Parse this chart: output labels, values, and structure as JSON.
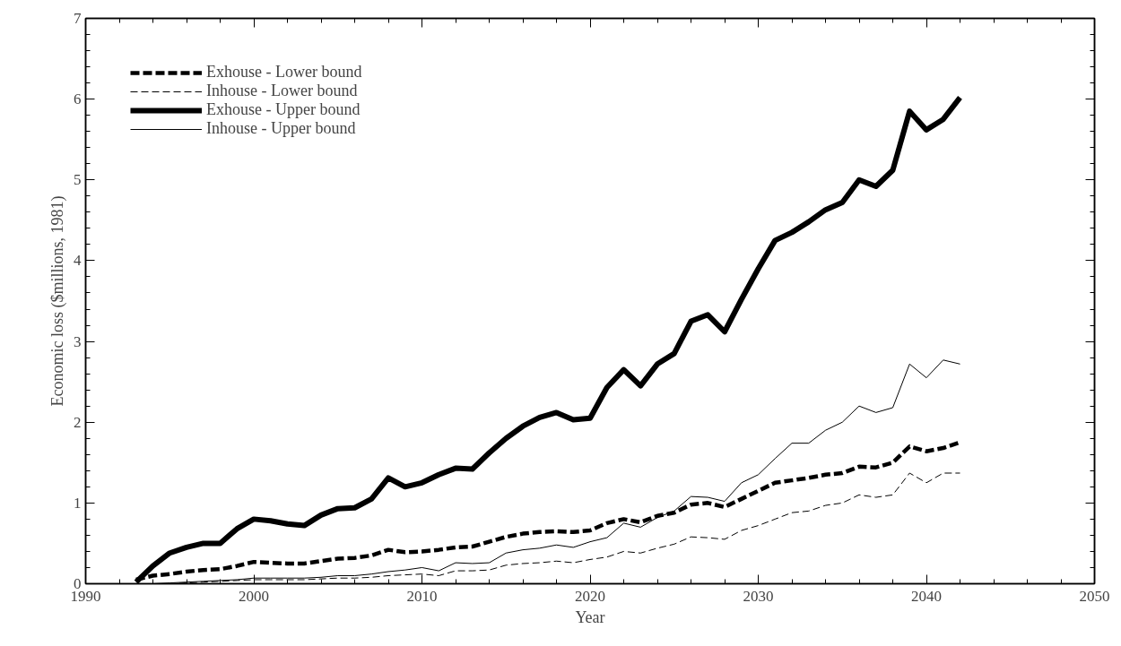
{
  "chart_data": {
    "type": "line",
    "xlabel": "Year",
    "ylabel": "Economic loss ($millions, 1981)",
    "x": [
      1993,
      1994,
      1995,
      1996,
      1997,
      1998,
      1999,
      2000,
      2001,
      2002,
      2003,
      2004,
      2005,
      2006,
      2007,
      2008,
      2009,
      2010,
      2011,
      2012,
      2013,
      2014,
      2015,
      2016,
      2017,
      2018,
      2019,
      2020,
      2021,
      2022,
      2023,
      2024,
      2025,
      2026,
      2027,
      2028,
      2029,
      2030,
      2031,
      2032,
      2033,
      2034,
      2035,
      2036,
      2037,
      2038,
      2039,
      2040,
      2041,
      2042
    ],
    "series": [
      {
        "name": "Exhouse - Lower bound",
        "color": "#000000",
        "line_style": "dashed",
        "values": [
          0.05,
          0.1,
          0.12,
          0.15,
          0.17,
          0.18,
          0.22,
          0.27,
          0.26,
          0.25,
          0.25,
          0.28,
          0.31,
          0.32,
          0.35,
          0.42,
          0.39,
          0.4,
          0.42,
          0.45,
          0.46,
          0.52,
          0.58,
          0.62,
          0.64,
          0.65,
          0.64,
          0.66,
          0.75,
          0.8,
          0.76,
          0.84,
          0.88,
          0.98,
          1.0,
          0.95,
          1.05,
          1.15,
          1.25,
          1.28,
          1.31,
          1.35,
          1.37,
          1.45,
          1.44,
          1.5,
          1.7,
          1.64,
          1.68,
          1.75
        ]
      },
      {
        "name": "Inhouse - Lower bound",
        "color": "#000000",
        "line_style": "dashed",
        "values": [
          0,
          0,
          0,
          0.01,
          0.02,
          0.03,
          0.04,
          0.05,
          0.05,
          0.05,
          0.05,
          0.06,
          0.07,
          0.07,
          0.08,
          0.1,
          0.11,
          0.12,
          0.1,
          0.16,
          0.16,
          0.17,
          0.23,
          0.25,
          0.26,
          0.28,
          0.26,
          0.3,
          0.33,
          0.4,
          0.38,
          0.44,
          0.49,
          0.58,
          0.57,
          0.55,
          0.66,
          0.72,
          0.8,
          0.88,
          0.9,
          0.97,
          1.0,
          1.1,
          1.07,
          1.1,
          1.37,
          1.25,
          1.37,
          1.37
        ]
      },
      {
        "name": "Exhouse - Upper bound",
        "color": "#000000",
        "line_style": "solid",
        "values": [
          0.02,
          0.22,
          0.38,
          0.45,
          0.5,
          0.5,
          0.68,
          0.8,
          0.78,
          0.74,
          0.72,
          0.85,
          0.93,
          0.94,
          1.05,
          1.31,
          1.2,
          1.25,
          1.35,
          1.43,
          1.42,
          1.62,
          1.8,
          1.95,
          2.06,
          2.12,
          2.03,
          2.05,
          2.43,
          2.65,
          2.45,
          2.72,
          2.85,
          3.25,
          3.33,
          3.12,
          3.52,
          3.9,
          4.25,
          4.35,
          4.48,
          4.63,
          4.72,
          5.0,
          4.92,
          5.12,
          5.85,
          5.62,
          5.75,
          6.02
        ]
      },
      {
        "name": "Inhouse - Upper bound",
        "color": "#000000",
        "line_style": "solid",
        "values": [
          0,
          0,
          0.01,
          0.02,
          0.03,
          0.04,
          0.05,
          0.07,
          0.07,
          0.07,
          0.07,
          0.08,
          0.1,
          0.1,
          0.12,
          0.15,
          0.17,
          0.2,
          0.16,
          0.26,
          0.25,
          0.26,
          0.38,
          0.42,
          0.44,
          0.48,
          0.45,
          0.52,
          0.57,
          0.75,
          0.7,
          0.82,
          0.9,
          1.08,
          1.07,
          1.02,
          1.25,
          1.35,
          1.55,
          1.74,
          1.74,
          1.9,
          2.0,
          2.2,
          2.12,
          2.18,
          2.72,
          2.55,
          2.77,
          2.72
        ]
      }
    ],
    "xlim": [
      1990,
      2050
    ],
    "xticks": [
      1990,
      2000,
      2010,
      2020,
      2030,
      2040,
      2050
    ],
    "ylim": [
      0,
      7
    ],
    "yticks": [
      0,
      1,
      2,
      3,
      4,
      5,
      6,
      7
    ],
    "legend": "top left",
    "grid": false,
    "marker": "none"
  }
}
